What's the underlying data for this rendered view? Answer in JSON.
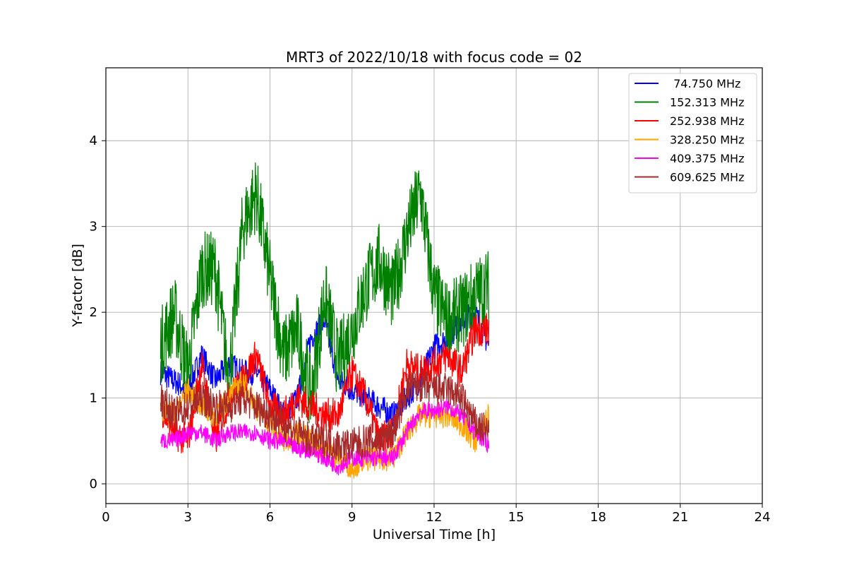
{
  "chart_data": {
    "type": "line",
    "title": "MRT3 of 2022/10/18 with focus code = 02",
    "xlabel": "Universal Time [h]",
    "ylabel": "Y-factor [dB]",
    "xlim": [
      0,
      24
    ],
    "ylim": [
      -0.23,
      4.85
    ],
    "xticks": [
      0,
      3,
      6,
      9,
      12,
      15,
      18,
      21,
      24
    ],
    "yticks": [
      0,
      1,
      2,
      3,
      4
    ],
    "grid": true,
    "legend_position": "top-right",
    "series": [
      {
        "name": " 74.750 MHz",
        "color": "#0000ff",
        "x": [
          2.0,
          2.5,
          3.0,
          3.5,
          4.0,
          4.5,
          5.0,
          5.5,
          6.0,
          6.5,
          7.0,
          7.5,
          8.0,
          8.5,
          9.0,
          9.5,
          10.0,
          10.5,
          11.0,
          11.5,
          12.0,
          12.5,
          13.0,
          13.5,
          14.0
        ],
        "y": [
          1.3,
          1.2,
          1.1,
          1.5,
          1.2,
          1.4,
          1.3,
          1.3,
          1.1,
          0.8,
          1.0,
          1.7,
          1.9,
          1.2,
          1.1,
          1.0,
          0.9,
          0.8,
          1.0,
          1.2,
          1.6,
          1.7,
          1.9,
          2.0,
          1.6
        ],
        "band": 0.15
      },
      {
        "name": "152.313 MHz",
        "color": "#008000",
        "x": [
          2.0,
          2.5,
          3.0,
          3.5,
          4.0,
          4.5,
          5.0,
          5.5,
          6.0,
          6.5,
          7.0,
          7.5,
          8.0,
          8.5,
          9.0,
          9.5,
          10.0,
          10.5,
          11.0,
          11.5,
          12.0,
          12.5,
          13.0,
          13.5,
          14.0
        ],
        "y": [
          1.6,
          2.0,
          1.3,
          2.5,
          2.5,
          1.2,
          3.0,
          3.4,
          2.4,
          1.5,
          1.8,
          1.0,
          2.2,
          1.4,
          1.8,
          2.3,
          2.6,
          2.2,
          2.9,
          3.4,
          2.2,
          1.9,
          2.0,
          2.2,
          2.3
        ],
        "band": 0.45
      },
      {
        "name": "252.938 MHz",
        "color": "#ff0000",
        "x": [
          2.0,
          2.5,
          3.0,
          3.5,
          4.0,
          4.5,
          5.0,
          5.5,
          6.0,
          6.5,
          7.0,
          7.5,
          8.0,
          8.5,
          9.0,
          9.5,
          10.0,
          10.5,
          11.0,
          11.5,
          12.0,
          12.5,
          13.0,
          13.5,
          14.0
        ],
        "y": [
          0.9,
          0.6,
          0.5,
          1.4,
          0.5,
          1.0,
          1.2,
          1.5,
          0.9,
          0.8,
          1.0,
          0.9,
          0.8,
          0.8,
          1.3,
          1.0,
          0.5,
          0.6,
          1.4,
          1.3,
          1.4,
          1.5,
          1.3,
          1.8,
          1.8
        ],
        "band": 0.2
      },
      {
        "name": "328.250 MHz",
        "color": "#ffa500",
        "x": [
          2.0,
          2.5,
          3.0,
          3.5,
          4.0,
          4.5,
          5.0,
          5.5,
          6.0,
          6.5,
          7.0,
          7.5,
          8.0,
          8.5,
          9.0,
          9.5,
          10.0,
          10.5,
          11.0,
          11.5,
          12.0,
          12.5,
          13.0,
          13.5,
          14.0
        ],
        "y": [
          0.9,
          0.8,
          1.1,
          0.9,
          0.8,
          1.0,
          1.2,
          0.9,
          0.7,
          0.5,
          0.6,
          0.5,
          0.4,
          0.3,
          0.2,
          0.3,
          0.3,
          0.3,
          0.6,
          0.8,
          0.8,
          0.8,
          0.7,
          0.5,
          0.8
        ],
        "band": 0.15
      },
      {
        "name": "409.375 MHz",
        "color": "#ff00ff",
        "x": [
          2.0,
          2.5,
          3.0,
          3.5,
          4.0,
          4.5,
          5.0,
          5.5,
          6.0,
          6.5,
          7.0,
          7.5,
          8.0,
          8.5,
          9.0,
          9.5,
          10.0,
          10.5,
          11.0,
          11.5,
          12.0,
          12.5,
          13.0,
          13.5,
          14.0
        ],
        "y": [
          0.5,
          0.5,
          0.6,
          0.6,
          0.5,
          0.6,
          0.6,
          0.6,
          0.5,
          0.5,
          0.4,
          0.4,
          0.3,
          0.2,
          0.3,
          0.3,
          0.3,
          0.3,
          0.6,
          0.85,
          0.85,
          0.9,
          0.8,
          0.6,
          0.45
        ],
        "band": 0.1
      },
      {
        "name": "609.625 MHz",
        "color": "#a52a2a",
        "x": [
          2.0,
          2.5,
          3.0,
          3.5,
          4.0,
          4.5,
          5.0,
          5.5,
          6.0,
          6.5,
          7.0,
          7.5,
          8.0,
          8.5,
          9.0,
          9.5,
          10.0,
          10.5,
          11.0,
          11.5,
          12.0,
          12.5,
          13.0,
          13.5,
          14.0
        ],
        "y": [
          1.0,
          0.8,
          0.9,
          1.0,
          0.9,
          0.9,
          1.0,
          0.9,
          0.8,
          0.7,
          0.6,
          0.5,
          0.5,
          0.45,
          0.45,
          0.5,
          0.5,
          0.6,
          1.1,
          1.15,
          1.1,
          1.1,
          1.0,
          0.7,
          0.6
        ],
        "band": 0.2
      }
    ]
  }
}
